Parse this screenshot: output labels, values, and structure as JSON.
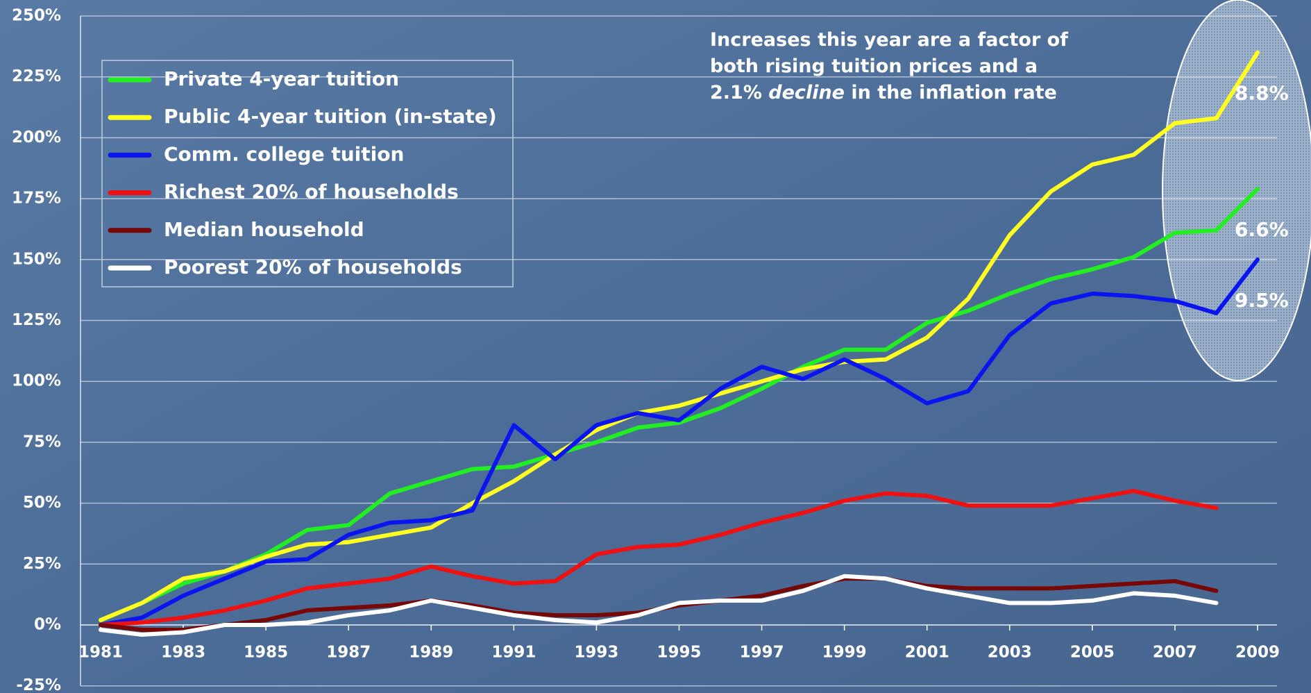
{
  "chart_data": {
    "type": "line",
    "annotation": [
      "Increases this year are a factor of",
      "both rising tuition prices and a",
      [
        "2.1% ",
        "decline",
        " in the inflation rate"
      ]
    ],
    "x": [
      1981,
      1982,
      1983,
      1984,
      1985,
      1986,
      1987,
      1988,
      1989,
      1990,
      1991,
      1992,
      1993,
      1994,
      1995,
      1996,
      1997,
      1998,
      1999,
      2000,
      2001,
      2002,
      2003,
      2004,
      2005,
      2006,
      2007,
      2008,
      2009
    ],
    "xlim": [
      1981,
      2009
    ],
    "xticks": [
      1981,
      1983,
      1985,
      1987,
      1989,
      1991,
      1993,
      1995,
      1997,
      1999,
      2001,
      2003,
      2005,
      2007,
      2009
    ],
    "ylim": [
      -25,
      250
    ],
    "yticks": [
      {
        "value": -25,
        "label": "-25%"
      },
      {
        "value": 0,
        "label": "0%"
      },
      {
        "value": 25,
        "label": "25%"
      },
      {
        "value": 50,
        "label": "50%"
      },
      {
        "value": 75,
        "label": "75%"
      },
      {
        "value": 100,
        "label": "100%"
      },
      {
        "value": 125,
        "label": "125%"
      },
      {
        "value": 150,
        "label": "150%"
      },
      {
        "value": 175,
        "label": "175%"
      },
      {
        "value": 200,
        "label": "200%"
      },
      {
        "value": 225,
        "label": "225%"
      },
      {
        "value": 250,
        "label": "250%"
      }
    ],
    "grid": true,
    "legend": "top-left",
    "series": [
      {
        "name": "Private 4-year tuition",
        "color": "#22ee22",
        "callout": "6.6%",
        "values": [
          2,
          9,
          17,
          22,
          29,
          39,
          41,
          54,
          59,
          64,
          65,
          70,
          75,
          81,
          83,
          89,
          97,
          106,
          113,
          113,
          124,
          129,
          136,
          142,
          146,
          151,
          161,
          162,
          179
        ]
      },
      {
        "name": "Public 4-year tuition (in-state)",
        "color": "#ffff22",
        "callout": "8.8%",
        "values": [
          2,
          9,
          19,
          22,
          28,
          33,
          34,
          37,
          40,
          50,
          59,
          70,
          80,
          87,
          90,
          95,
          100,
          105,
          108,
          109,
          118,
          134,
          160,
          178,
          189,
          193,
          206,
          208,
          235
        ]
      },
      {
        "name": "Comm. college tuition",
        "color": "#0a14ee",
        "callout": "9.5%",
        "values": [
          0,
          3,
          12,
          19,
          26,
          27,
          37,
          42,
          43,
          47,
          82,
          68,
          82,
          87,
          84,
          97,
          106,
          101,
          109,
          101,
          91,
          96,
          119,
          132,
          136,
          135,
          133,
          128,
          150
        ]
      },
      {
        "name": "Richest 20% of households",
        "color": "#ee1111",
        "values": [
          0,
          1,
          3,
          6,
          10,
          15,
          17,
          19,
          24,
          20,
          17,
          18,
          29,
          32,
          33,
          37,
          42,
          46,
          51,
          54,
          53,
          49,
          49,
          49,
          52,
          55,
          51,
          48,
          null
        ]
      },
      {
        "name": "Median household",
        "color": "#770808",
        "values": [
          0,
          -2,
          -2,
          0,
          2,
          6,
          7,
          8,
          10,
          8,
          5,
          4,
          4,
          5,
          8,
          10,
          12,
          16,
          19,
          19,
          16,
          15,
          15,
          15,
          16,
          17,
          18,
          14,
          null
        ]
      },
      {
        "name": "Poorest 20% of households",
        "color": "#ffffff",
        "values": [
          -2,
          -4,
          -3,
          0,
          0,
          1,
          4,
          6,
          10,
          7,
          4,
          2,
          1,
          4,
          9,
          10,
          10,
          14,
          20,
          19,
          15,
          12,
          9,
          9,
          10,
          13,
          12,
          9,
          null
        ]
      }
    ]
  }
}
